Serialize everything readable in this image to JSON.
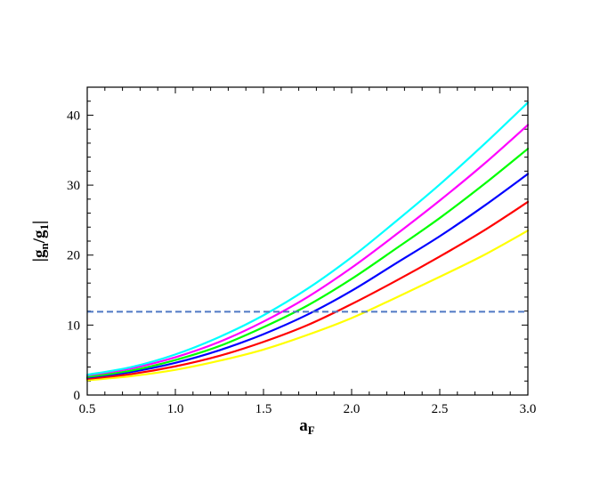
{
  "chart_data": {
    "type": "line",
    "xlabel": {
      "main": "a",
      "sub": "F"
    },
    "ylabel": {
      "open": "|g",
      "sub1": "n",
      "mid": "/g",
      "sub2": "1",
      "close": "|"
    },
    "xlim": [
      0.5,
      3.0
    ],
    "ylim": [
      0,
      44
    ],
    "x_ticks": [
      0.5,
      1.0,
      1.5,
      2.0,
      2.5,
      3.0
    ],
    "x_tick_labels": [
      "0.5",
      "1.0",
      "1.5",
      "2.0",
      "2.5",
      "3.0"
    ],
    "y_ticks": [
      0,
      10,
      20,
      30,
      40
    ],
    "y_tick_labels": [
      "0",
      "10",
      "20",
      "30",
      "40"
    ],
    "grid": false,
    "legend": "none",
    "reference_line": {
      "y": 11.9,
      "style": "dashed",
      "color": "#4f78c4"
    },
    "series": [
      {
        "color": "#ffff00",
        "x": [
          0.5,
          0.75,
          1.0,
          1.25,
          1.5,
          1.75,
          2.0,
          2.25,
          2.5,
          2.75,
          3.0
        ],
        "values": [
          2.1,
          2.7,
          3.6,
          4.9,
          6.5,
          8.6,
          11.0,
          13.9,
          16.9,
          20.0,
          23.5
        ]
      },
      {
        "color": "#ff0000",
        "x": [
          0.5,
          0.75,
          1.0,
          1.25,
          1.5,
          1.75,
          2.0,
          2.25,
          2.5,
          2.75,
          3.0
        ],
        "values": [
          2.3,
          3.0,
          4.1,
          5.6,
          7.6,
          10.0,
          13.0,
          16.3,
          19.8,
          23.5,
          27.6
        ]
      },
      {
        "color": "#0000ff",
        "x": [
          0.5,
          0.75,
          1.0,
          1.25,
          1.5,
          1.75,
          2.0,
          2.25,
          2.5,
          2.75,
          3.0
        ],
        "values": [
          2.5,
          3.3,
          4.6,
          6.4,
          8.7,
          11.5,
          14.9,
          18.8,
          22.7,
          27.0,
          31.6
        ]
      },
      {
        "color": "#00ff00",
        "x": [
          0.5,
          0.75,
          1.0,
          1.25,
          1.5,
          1.75,
          2.0,
          2.25,
          2.5,
          2.75,
          3.0
        ],
        "values": [
          2.6,
          3.5,
          5.0,
          7.0,
          9.7,
          12.8,
          16.6,
          20.9,
          25.3,
          30.1,
          35.2
        ]
      },
      {
        "color": "#ff00ff",
        "x": [
          0.5,
          0.75,
          1.0,
          1.25,
          1.5,
          1.75,
          2.0,
          2.25,
          2.5,
          2.75,
          3.0
        ],
        "values": [
          2.8,
          3.8,
          5.4,
          7.6,
          10.5,
          14.0,
          18.2,
          22.9,
          27.8,
          33.0,
          38.6
        ]
      },
      {
        "color": "#00ffff",
        "x": [
          0.5,
          0.75,
          1.0,
          1.25,
          1.5,
          1.75,
          2.0,
          2.25,
          2.5,
          2.75,
          3.0
        ],
        "values": [
          2.9,
          4.0,
          5.8,
          8.3,
          11.4,
          15.2,
          19.7,
          24.8,
          30.1,
          35.8,
          41.8
        ]
      }
    ]
  }
}
